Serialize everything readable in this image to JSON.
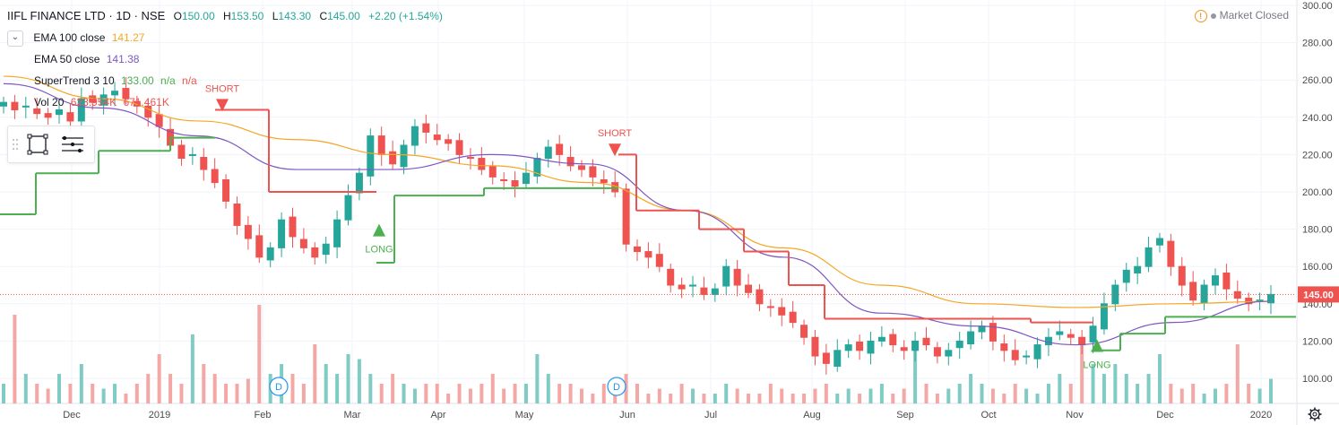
{
  "header": {
    "symbol": "IIFL FINANCE LTD · 1D · NSE",
    "o_label": "O",
    "o_value": "150.00",
    "h_label": "H",
    "h_value": "153.50",
    "l_label": "L",
    "l_value": "143.30",
    "c_label": "C",
    "c_value": "145.00",
    "change": "+2.20 (+1.54%)",
    "collapse_icon": "chevron-down-icon"
  },
  "indicators": {
    "ema100": {
      "name": "EMA 100 close",
      "value": "141.27",
      "color": "#f5a623"
    },
    "ema50": {
      "name": "EMA 50 close",
      "value": "141.38",
      "color": "#7e57c2"
    },
    "supertrend": {
      "name": "SuperTrend 3 10",
      "value": "133.00",
      "na1": "n/a",
      "na2": "n/a",
      "up_color": "#4caf50",
      "down_color": "#ef5350"
    },
    "volume": {
      "name": "Vol 20",
      "value": "623.954K",
      "ma_value": "671.461K"
    }
  },
  "status": {
    "text": "Market Closed",
    "warn_icon": "warning-icon"
  },
  "toolbox": {
    "icons": [
      "rectangle-select-icon",
      "menu-lines-icon"
    ]
  },
  "colors": {
    "up": "#26a69a",
    "down": "#ef5350",
    "vol_up": "#80cbc4",
    "vol_down": "#f4a8a6",
    "ema100": "#f5a623",
    "ema50": "#7e57c2",
    "st_up": "#4caf50",
    "st_down": "#ef5350",
    "price_line": "#ef5350",
    "grid": "#f0f3fa",
    "axis_text": "#4a4a4a"
  },
  "chart_data": {
    "type": "candlestick",
    "price_axis": {
      "ylim": [
        90,
        300
      ],
      "ticks": [
        100,
        120,
        140,
        160,
        180,
        200,
        220,
        240,
        260,
        280,
        300
      ],
      "tick_labels": [
        "100.00",
        "120.00",
        "140.00",
        "160.00",
        "180.00",
        "200.00",
        "220.00",
        "240.00",
        "260.00",
        "280.00",
        "300.00"
      ]
    },
    "time_axis": {
      "labels": [
        "Dec",
        "2019",
        "Feb",
        "Mar",
        "Apr",
        "May",
        "Jun",
        "Jul",
        "Aug",
        "Sep",
        "Oct",
        "Nov",
        "Dec",
        "2020"
      ]
    },
    "last_price": {
      "value": 145.0,
      "label": "145.00"
    },
    "price_path_closes": [
      248,
      244,
      246,
      242,
      240,
      244,
      238,
      250,
      248,
      252,
      254,
      250,
      246,
      240,
      235,
      225,
      218,
      220,
      212,
      205,
      195,
      182,
      175,
      165,
      170,
      185,
      176,
      170,
      165,
      172,
      185,
      198,
      210,
      230,
      220,
      215,
      225,
      235,
      232,
      228,
      226,
      220,
      218,
      212,
      208,
      206,
      203,
      210,
      218,
      224,
      220,
      214,
      212,
      208,
      205,
      200,
      172,
      168,
      165,
      160,
      150,
      148,
      150,
      145,
      148,
      160,
      150,
      146,
      140,
      138,
      134,
      130,
      122,
      112,
      108,
      115,
      118,
      115,
      120,
      122,
      118,
      115,
      120,
      118,
      112,
      115,
      120,
      125,
      128,
      120,
      115,
      110,
      112,
      118,
      122,
      125,
      122,
      118,
      128,
      140,
      150,
      158,
      160,
      170,
      175,
      160,
      150,
      142,
      150,
      155,
      148,
      143,
      140,
      142,
      145
    ],
    "ema100_anchor_values": [
      262,
      250,
      238,
      228,
      220,
      214,
      205,
      190,
      170,
      150,
      140,
      138,
      140,
      141.27
    ],
    "ema50_anchor_values": [
      258,
      245,
      230,
      212,
      212,
      220,
      215,
      190,
      165,
      135,
      128,
      118,
      130,
      141.38
    ],
    "supertrend_steps": [
      {
        "value": 188,
        "dir": "up"
      },
      {
        "value": 210,
        "dir": "up"
      },
      {
        "value": 222,
        "dir": "up"
      },
      {
        "value": 229,
        "dir": "up"
      },
      {
        "value": 244,
        "dir": "down"
      },
      {
        "value": 200,
        "dir": "down"
      },
      {
        "value": 162,
        "dir": "up"
      },
      {
        "value": 198,
        "dir": "up"
      },
      {
        "value": 202,
        "dir": "up"
      },
      {
        "value": 220,
        "dir": "down"
      },
      {
        "value": 190,
        "dir": "down"
      },
      {
        "value": 180,
        "dir": "down"
      },
      {
        "value": 168,
        "dir": "down"
      },
      {
        "value": 150,
        "dir": "down"
      },
      {
        "value": 132,
        "dir": "down"
      },
      {
        "value": 130,
        "dir": "down"
      },
      {
        "value": 115,
        "dir": "up"
      },
      {
        "value": 124,
        "dir": "up"
      },
      {
        "value": 133,
        "dir": "up"
      }
    ],
    "signals": [
      {
        "label": "SHORT",
        "type": "short",
        "price": 246
      },
      {
        "label": "LONG",
        "type": "long",
        "price": 180
      },
      {
        "label": "SHORT",
        "type": "short",
        "price": 222
      },
      {
        "label": "LONG",
        "type": "long",
        "price": 118
      }
    ],
    "dividend_markers": [
      "D",
      "D"
    ],
    "volume_levels": [
      0.2,
      0.9,
      0.3,
      0.2,
      0.15,
      0.3,
      0.2,
      0.4,
      0.2,
      0.15,
      0.2,
      0.1,
      0.2,
      0.3,
      0.5,
      0.3,
      0.2,
      0.7,
      0.4,
      0.3,
      0.2,
      0.2,
      0.25,
      1.0,
      0.3,
      0.4,
      0.3,
      0.2,
      0.6,
      0.4,
      0.3,
      0.5,
      0.45,
      0.3,
      0.2,
      0.3,
      0.2,
      0.15,
      0.2,
      0.2,
      0.1,
      0.2,
      0.15,
      0.2,
      0.3,
      0.15,
      0.2,
      0.2,
      0.5,
      0.3,
      0.2,
      0.2,
      0.15,
      0.1,
      0.2,
      0.15,
      0.3,
      0.2,
      0.1,
      0.15,
      0.1,
      0.2,
      0.15,
      0.1,
      0.1,
      0.2,
      0.15,
      0.1,
      0.1,
      0.2,
      0.15,
      0.1,
      0.1,
      0.15,
      0.2,
      0.1,
      0.15,
      0.1,
      0.15,
      0.2,
      0.1,
      0.15,
      0.6,
      0.2,
      0.1,
      0.15,
      0.2,
      0.3,
      0.2,
      0.15,
      0.1,
      0.2,
      0.15,
      0.1,
      0.2,
      0.3,
      0.2,
      0.6,
      0.4,
      0.3,
      0.4,
      0.3,
      0.2,
      0.3,
      0.5,
      0.2,
      0.15,
      0.2,
      0.1,
      0.15,
      0.2,
      0.6,
      0.2,
      0.15,
      0.25
    ],
    "grid": true
  }
}
